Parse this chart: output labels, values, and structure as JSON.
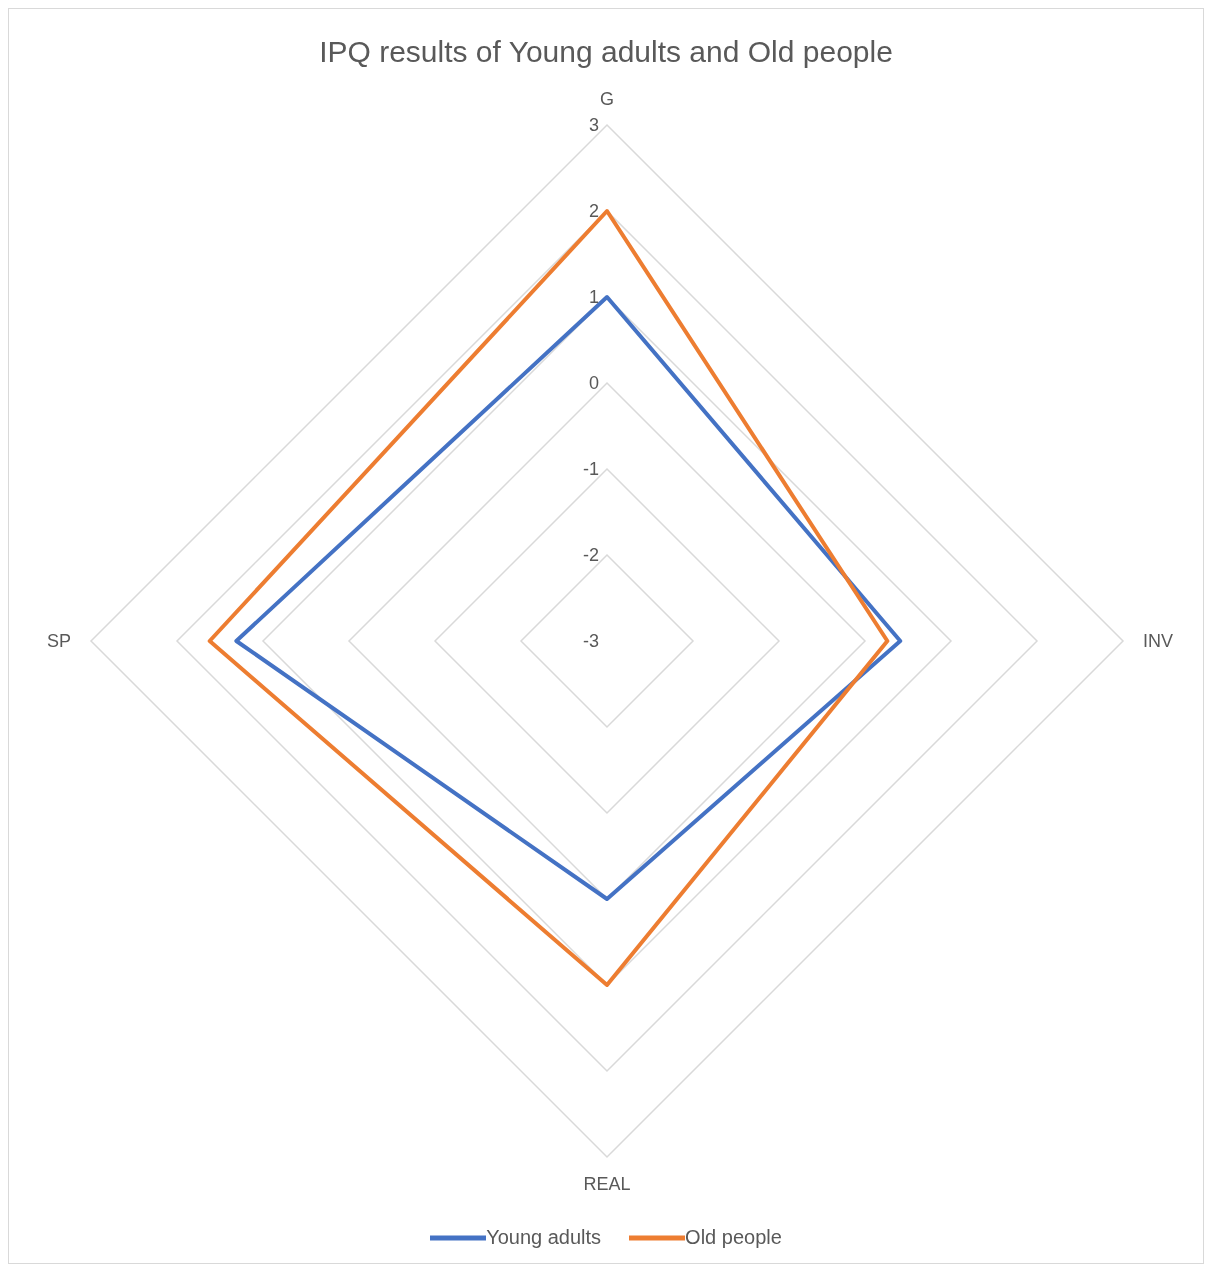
{
  "chart_data": {
    "type": "radar",
    "title": "IPQ results of Young adults and Old people",
    "categories": [
      "G",
      "INV",
      "REAL",
      "SP"
    ],
    "series": [
      {
        "name": "Young adults",
        "color": "#4472c4",
        "values": [
          1,
          0.41,
          0,
          1.31
        ]
      },
      {
        "name": "Old people",
        "color": "#ed7d31",
        "values": [
          2,
          0.26,
          1,
          1.62
        ]
      }
    ],
    "ylim": [
      -3,
      3
    ],
    "yticks": [
      -3,
      -2,
      -1,
      0,
      1,
      2,
      3
    ],
    "grid": true,
    "legend": "bottom"
  }
}
